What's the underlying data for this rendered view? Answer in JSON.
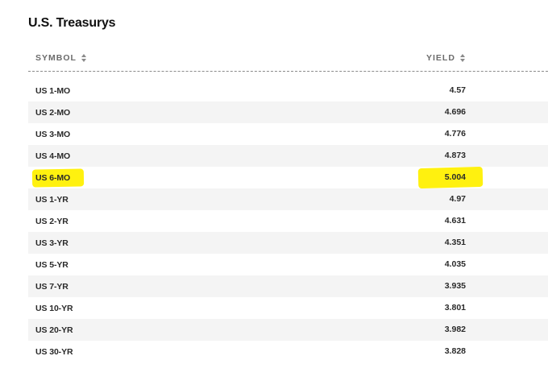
{
  "title": "U.S. Treasurys",
  "columns": {
    "symbol": "SYMBOL",
    "yield": "YIELD"
  },
  "highlight_color": "#fff10f",
  "rows": [
    {
      "symbol": "US 1-MO",
      "yield": "4.57",
      "highlighted": false
    },
    {
      "symbol": "US 2-MO",
      "yield": "4.696",
      "highlighted": false
    },
    {
      "symbol": "US 3-MO",
      "yield": "4.776",
      "highlighted": false
    },
    {
      "symbol": "US 4-MO",
      "yield": "4.873",
      "highlighted": false
    },
    {
      "symbol": "US 6-MO",
      "yield": "5.004",
      "highlighted": true
    },
    {
      "symbol": "US 1-YR",
      "yield": "4.97",
      "highlighted": false
    },
    {
      "symbol": "US 2-YR",
      "yield": "4.631",
      "highlighted": false
    },
    {
      "symbol": "US 3-YR",
      "yield": "4.351",
      "highlighted": false
    },
    {
      "symbol": "US 5-YR",
      "yield": "4.035",
      "highlighted": false
    },
    {
      "symbol": "US 7-YR",
      "yield": "3.935",
      "highlighted": false
    },
    {
      "symbol": "US 10-YR",
      "yield": "3.801",
      "highlighted": false
    },
    {
      "symbol": "US 20-YR",
      "yield": "3.982",
      "highlighted": false
    },
    {
      "symbol": "US 30-YR",
      "yield": "3.828",
      "highlighted": false
    }
  ]
}
